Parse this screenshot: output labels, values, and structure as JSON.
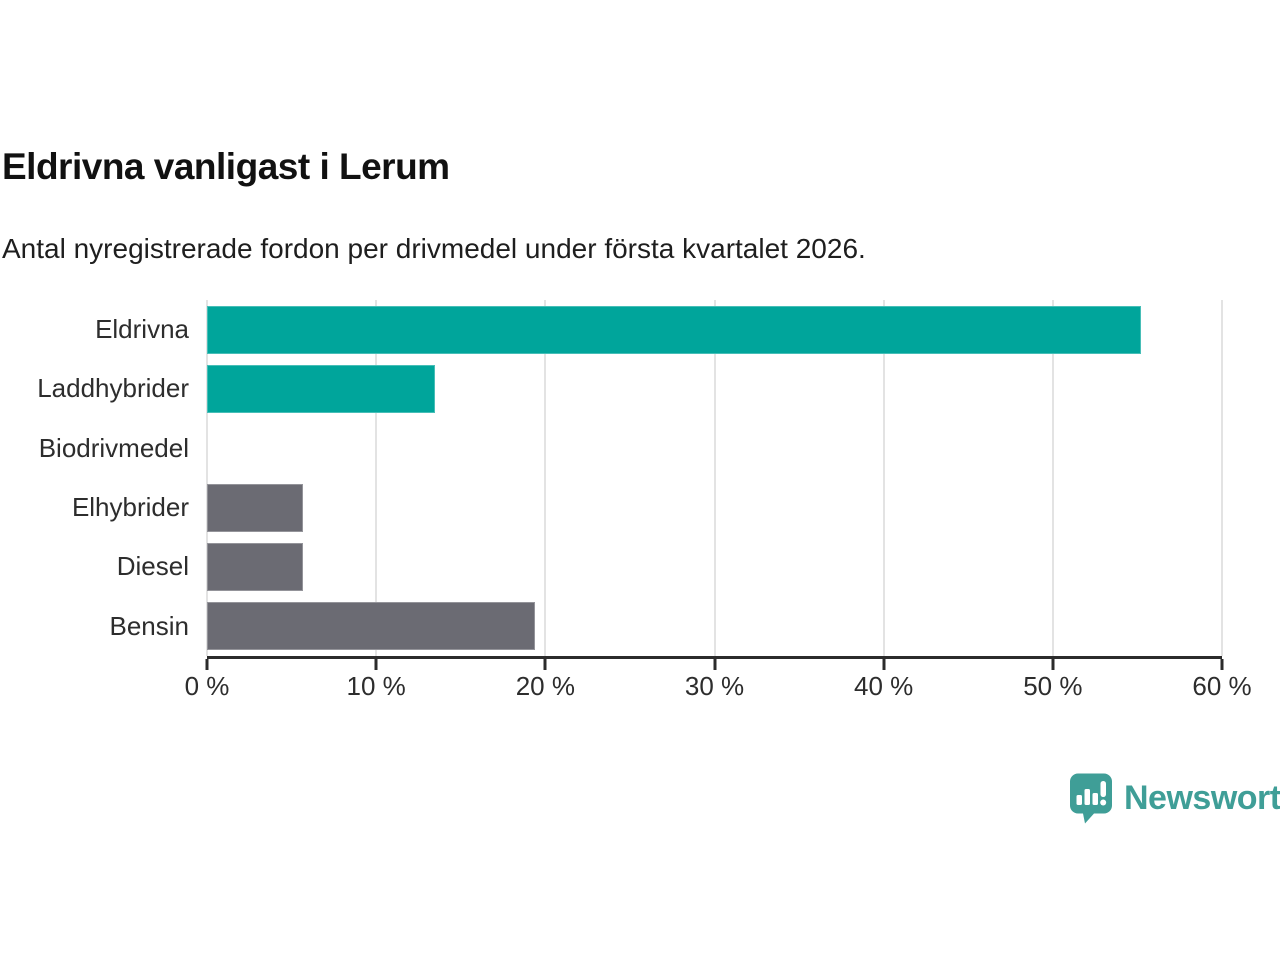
{
  "header": {
    "title": "Eldrivna vanligast i Lerum",
    "subtitle": "Antal nyregistrerade fordon per drivmedel under första kvartalet 2026."
  },
  "chart_data": {
    "type": "bar",
    "orientation": "horizontal",
    "title": "Eldrivna vanligast i Lerum",
    "subtitle": "Antal nyregistrerade fordon per drivmedel under första kvartalet 2026.",
    "categories": [
      "Eldrivna",
      "Laddhybrider",
      "Biodrivmedel",
      "Elhybrider",
      "Diesel",
      "Bensin"
    ],
    "values": [
      55.2,
      13.5,
      0,
      5.7,
      5.7,
      19.4
    ],
    "unit": "%",
    "bar_colors": [
      "#00a59b",
      "#00a59b",
      "#00a59b",
      "#6b6b73",
      "#6b6b73",
      "#6b6b73"
    ],
    "xlim": [
      0,
      60
    ],
    "x_ticks": [
      0,
      10,
      20,
      30,
      40,
      50,
      60
    ],
    "x_tick_labels": [
      "0 %",
      "10 %",
      "20 %",
      "30 %",
      "40 %",
      "50 %",
      "60 %"
    ],
    "grid": true,
    "gridline_color": "#e3e3e3",
    "axis_color": "#2b2b2b",
    "legend": "none"
  },
  "colors": {
    "electric_teal": "#00a59b",
    "fossil_gray": "#6b6b73",
    "brand_teal": "#3f9e97"
  },
  "footer": {
    "brand": "Newsworthy"
  }
}
